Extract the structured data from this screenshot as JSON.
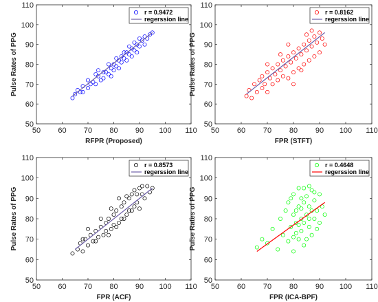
{
  "chart_data": [
    {
      "type": "scatter",
      "xlabel": "RFPR (Proposed)",
      "ylabel": "Pulse Rates of PPG",
      "xlim": [
        50,
        110
      ],
      "ylim": [
        50,
        110
      ],
      "xticks": [
        50,
        60,
        70,
        80,
        90,
        100,
        110
      ],
      "yticks": [
        50,
        60,
        70,
        80,
        90,
        100,
        110
      ],
      "tick_labels": [
        "50",
        "60",
        "70",
        "80",
        "90",
        "100",
        "110"
      ],
      "grid": false,
      "legend_position": "top-right",
      "marker_color": "#0000ff",
      "line_color": "#6d5fa8",
      "legend": {
        "scatter_label": "r = 0.9472",
        "line_label": "regerssion line"
      },
      "series": [
        {
          "values": [
            [
              64,
              63
            ],
            [
              65,
              65
            ],
            [
              66,
              67
            ],
            [
              67,
              66
            ],
            [
              68,
              69
            ],
            [
              70,
              68
            ],
            [
              71,
              70
            ],
            [
              72,
              71
            ],
            [
              73,
              70
            ],
            [
              74,
              74
            ],
            [
              75,
              72
            ],
            [
              76,
              73
            ],
            [
              77,
              76
            ],
            [
              78,
              75
            ],
            [
              79,
              78
            ],
            [
              80,
              77
            ],
            [
              80,
              80
            ],
            [
              81,
              79
            ],
            [
              82,
              82
            ],
            [
              82,
              78
            ],
            [
              83,
              84
            ],
            [
              84,
              83
            ],
            [
              85,
              86
            ],
            [
              85,
              82
            ],
            [
              86,
              85
            ],
            [
              87,
              88
            ],
            [
              87,
              84
            ],
            [
              88,
              87
            ],
            [
              89,
              90
            ],
            [
              89,
              86
            ],
            [
              90,
              89
            ],
            [
              91,
              92
            ],
            [
              92,
              90
            ],
            [
              92,
              94
            ],
            [
              93,
              93
            ],
            [
              94,
              95
            ],
            [
              95,
              96
            ],
            [
              73,
              75
            ],
            [
              78,
              80
            ],
            [
              84,
              86
            ],
            [
              70,
              72
            ],
            [
              86,
              89
            ],
            [
              76,
              76
            ],
            [
              83,
              81
            ],
            [
              90,
              93
            ],
            [
              79,
              74
            ],
            [
              88,
              91
            ],
            [
              81,
              83
            ],
            [
              68,
              66
            ],
            [
              74,
              77
            ]
          ],
          "regression": [
            [
              64,
              64
            ],
            [
              95,
              96
            ]
          ]
        }
      ]
    },
    {
      "type": "scatter",
      "xlabel": "FPR (STFT)",
      "ylabel": "Pulse Rates of PPG",
      "xlim": [
        50,
        110
      ],
      "ylim": [
        50,
        110
      ],
      "xticks": [
        50,
        60,
        70,
        80,
        90,
        100,
        110
      ],
      "yticks": [
        50,
        60,
        70,
        80,
        90,
        100,
        110
      ],
      "tick_labels": [
        "50",
        "60",
        "70",
        "80",
        "90",
        "100",
        "110"
      ],
      "grid": false,
      "legend_position": "top-right",
      "marker_color": "#ff0000",
      "line_color": "#6d5fa8",
      "legend": {
        "scatter_label": "r = 0.8162",
        "line_label": "regerssion line"
      },
      "series": [
        {
          "values": [
            [
              62,
              64
            ],
            [
              63,
              67
            ],
            [
              64,
              63
            ],
            [
              65,
              70
            ],
            [
              66,
              66
            ],
            [
              67,
              72
            ],
            [
              68,
              68
            ],
            [
              68,
              74
            ],
            [
              69,
              70
            ],
            [
              70,
              76
            ],
            [
              70,
              66
            ],
            [
              71,
              73
            ],
            [
              72,
              78
            ],
            [
              72,
              70
            ],
            [
              73,
              75
            ],
            [
              74,
              80
            ],
            [
              74,
              72
            ],
            [
              75,
              77
            ],
            [
              76,
              82
            ],
            [
              76,
              74
            ],
            [
              77,
              79
            ],
            [
              78,
              84
            ],
            [
              78,
              73
            ],
            [
              79,
              81
            ],
            [
              80,
              86
            ],
            [
              80,
              76
            ],
            [
              81,
              83
            ],
            [
              82,
              88
            ],
            [
              82,
              78
            ],
            [
              83,
              85
            ],
            [
              84,
              90
            ],
            [
              84,
              80
            ],
            [
              85,
              87
            ],
            [
              86,
              92
            ],
            [
              86,
              82
            ],
            [
              87,
              89
            ],
            [
              88,
              94
            ],
            [
              88,
              84
            ],
            [
              89,
              91
            ],
            [
              90,
              96
            ],
            [
              90,
              86
            ],
            [
              91,
              93
            ],
            [
              92,
              90
            ],
            [
              75,
              85
            ],
            [
              80,
              70
            ],
            [
              85,
              95
            ],
            [
              70,
              80
            ],
            [
              78,
              90
            ],
            [
              83,
              77
            ],
            [
              87,
              97
            ]
          ],
          "regression": [
            [
              62,
              65
            ],
            [
              92,
              96
            ]
          ]
        }
      ]
    },
    {
      "type": "scatter",
      "xlabel": "FPR (ACF)",
      "ylabel": "Pulse Rates of PPG",
      "xlim": [
        50,
        110
      ],
      "ylim": [
        50,
        110
      ],
      "xticks": [
        50,
        60,
        70,
        80,
        90,
        100,
        110
      ],
      "yticks": [
        50,
        60,
        70,
        80,
        90,
        100,
        110
      ],
      "tick_labels": [
        "50",
        "60",
        "70",
        "80",
        "90",
        "100",
        "110"
      ],
      "grid": false,
      "legend_position": "top-right",
      "marker_color": "#000000",
      "line_color": "#6d5fa8",
      "legend": {
        "scatter_label": "r = 0.8573",
        "line_label": "regerssion line"
      },
      "series": [
        {
          "values": [
            [
              64,
              63
            ],
            [
              66,
              65
            ],
            [
              67,
              68
            ],
            [
              68,
              64
            ],
            [
              69,
              70
            ],
            [
              70,
              67
            ],
            [
              71,
              72
            ],
            [
              72,
              69
            ],
            [
              73,
              74
            ],
            [
              74,
              71
            ],
            [
              75,
              76
            ],
            [
              76,
              72
            ],
            [
              77,
              78
            ],
            [
              77,
              74
            ],
            [
              78,
              80
            ],
            [
              79,
              75
            ],
            [
              80,
              82
            ],
            [
              80,
              77
            ],
            [
              81,
              84
            ],
            [
              82,
              78
            ],
            [
              83,
              86
            ],
            [
              83,
              80
            ],
            [
              84,
              88
            ],
            [
              85,
              82
            ],
            [
              86,
              90
            ],
            [
              86,
              84
            ],
            [
              87,
              92
            ],
            [
              88,
              86
            ],
            [
              88,
              94
            ],
            [
              89,
              88
            ],
            [
              90,
              95
            ],
            [
              90,
              85
            ],
            [
              91,
              92
            ],
            [
              92,
              90
            ],
            [
              93,
              96
            ],
            [
              94,
              93
            ],
            [
              95,
              95
            ],
            [
              75,
              80
            ],
            [
              79,
              85
            ],
            [
              84,
              80
            ],
            [
              70,
              75
            ],
            [
              87,
              84
            ],
            [
              82,
              90
            ],
            [
              73,
              69
            ],
            [
              91,
              96
            ],
            [
              78,
              72
            ],
            [
              85,
              91
            ],
            [
              81,
              76
            ],
            [
              68,
              70
            ],
            [
              89,
              92
            ]
          ],
          "regression": [
            [
              65,
              65
            ],
            [
              95,
              95
            ]
          ]
        }
      ]
    },
    {
      "type": "scatter",
      "xlabel": "FPR (ICA-BPF)",
      "ylabel": "Pulse Rates of PPG",
      "xlim": [
        50,
        110
      ],
      "ylim": [
        50,
        110
      ],
      "xticks": [
        50,
        60,
        70,
        80,
        90,
        100,
        110
      ],
      "yticks": [
        50,
        60,
        70,
        80,
        90,
        100,
        110
      ],
      "tick_labels": [
        "50",
        "60",
        "70",
        "80",
        "90",
        "100",
        "110"
      ],
      "grid": false,
      "legend_position": "top-right",
      "marker_color": "#00ff00",
      "line_color": "#ff0000",
      "legend": {
        "scatter_label": "r = 0.4648",
        "line_label": "regerssion line"
      },
      "series": [
        {
          "values": [
            [
              66,
              66
            ],
            [
              68,
              70
            ],
            [
              70,
              68
            ],
            [
              72,
              75
            ],
            [
              74,
              65
            ],
            [
              75,
              80
            ],
            [
              76,
              72
            ],
            [
              77,
              84
            ],
            [
              78,
              69
            ],
            [
              78,
              88
            ],
            [
              79,
              76
            ],
            [
              80,
              64
            ],
            [
              80,
              92
            ],
            [
              81,
              78
            ],
            [
              81,
              84
            ],
            [
              82,
              70
            ],
            [
              82,
              95
            ],
            [
              83,
              80
            ],
            [
              83,
              74
            ],
            [
              84,
              88
            ],
            [
              84,
              67
            ],
            [
              85,
              82
            ],
            [
              85,
              91
            ],
            [
              86,
              76
            ],
            [
              86,
              86
            ],
            [
              87,
              72
            ],
            [
              87,
              94
            ],
            [
              88,
              80
            ],
            [
              88,
              89
            ],
            [
              89,
              75
            ],
            [
              89,
              84
            ],
            [
              90,
              92
            ],
            [
              90,
              78
            ],
            [
              91,
              86
            ],
            [
              92,
              82
            ],
            [
              80,
              82
            ],
            [
              82,
              86
            ],
            [
              84,
              78
            ],
            [
              83,
              90
            ],
            [
              81,
              73
            ],
            [
              85,
              70
            ],
            [
              86,
              96
            ],
            [
              79,
              90
            ],
            [
              87,
              84
            ],
            [
              84,
              95
            ],
            [
              82,
              77
            ],
            [
              80,
              71
            ],
            [
              88,
              93
            ],
            [
              86,
              80
            ],
            [
              83,
              85
            ]
          ],
          "regression": [
            [
              66,
              64
            ],
            [
              92,
              88
            ]
          ]
        }
      ]
    }
  ]
}
